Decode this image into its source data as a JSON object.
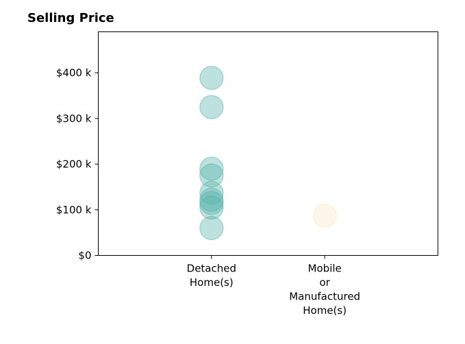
{
  "chart_data": {
    "type": "scatter",
    "title": "Selling Price",
    "xlabel": "",
    "ylabel": "",
    "categories": [
      [
        "Detached",
        "Home(s)"
      ],
      [
        "Mobile",
        "or",
        "Manufactured",
        "Home(s)"
      ]
    ],
    "y_ticks": [
      0,
      100000,
      200000,
      300000,
      400000
    ],
    "y_tick_labels": [
      "$0",
      "$100 k",
      "$200 k",
      "$300 k",
      "$400 k"
    ],
    "ylim": [
      0,
      490000
    ],
    "grid": false,
    "series": [
      {
        "category_index": 0,
        "color": "#5ab4ac",
        "values": [
          389000,
          325000,
          190000,
          175000,
          137000,
          122000,
          115000,
          105000,
          60000
        ]
      },
      {
        "category_index": 1,
        "color": "#f6e8c3",
        "values": [
          87000
        ]
      }
    ]
  }
}
